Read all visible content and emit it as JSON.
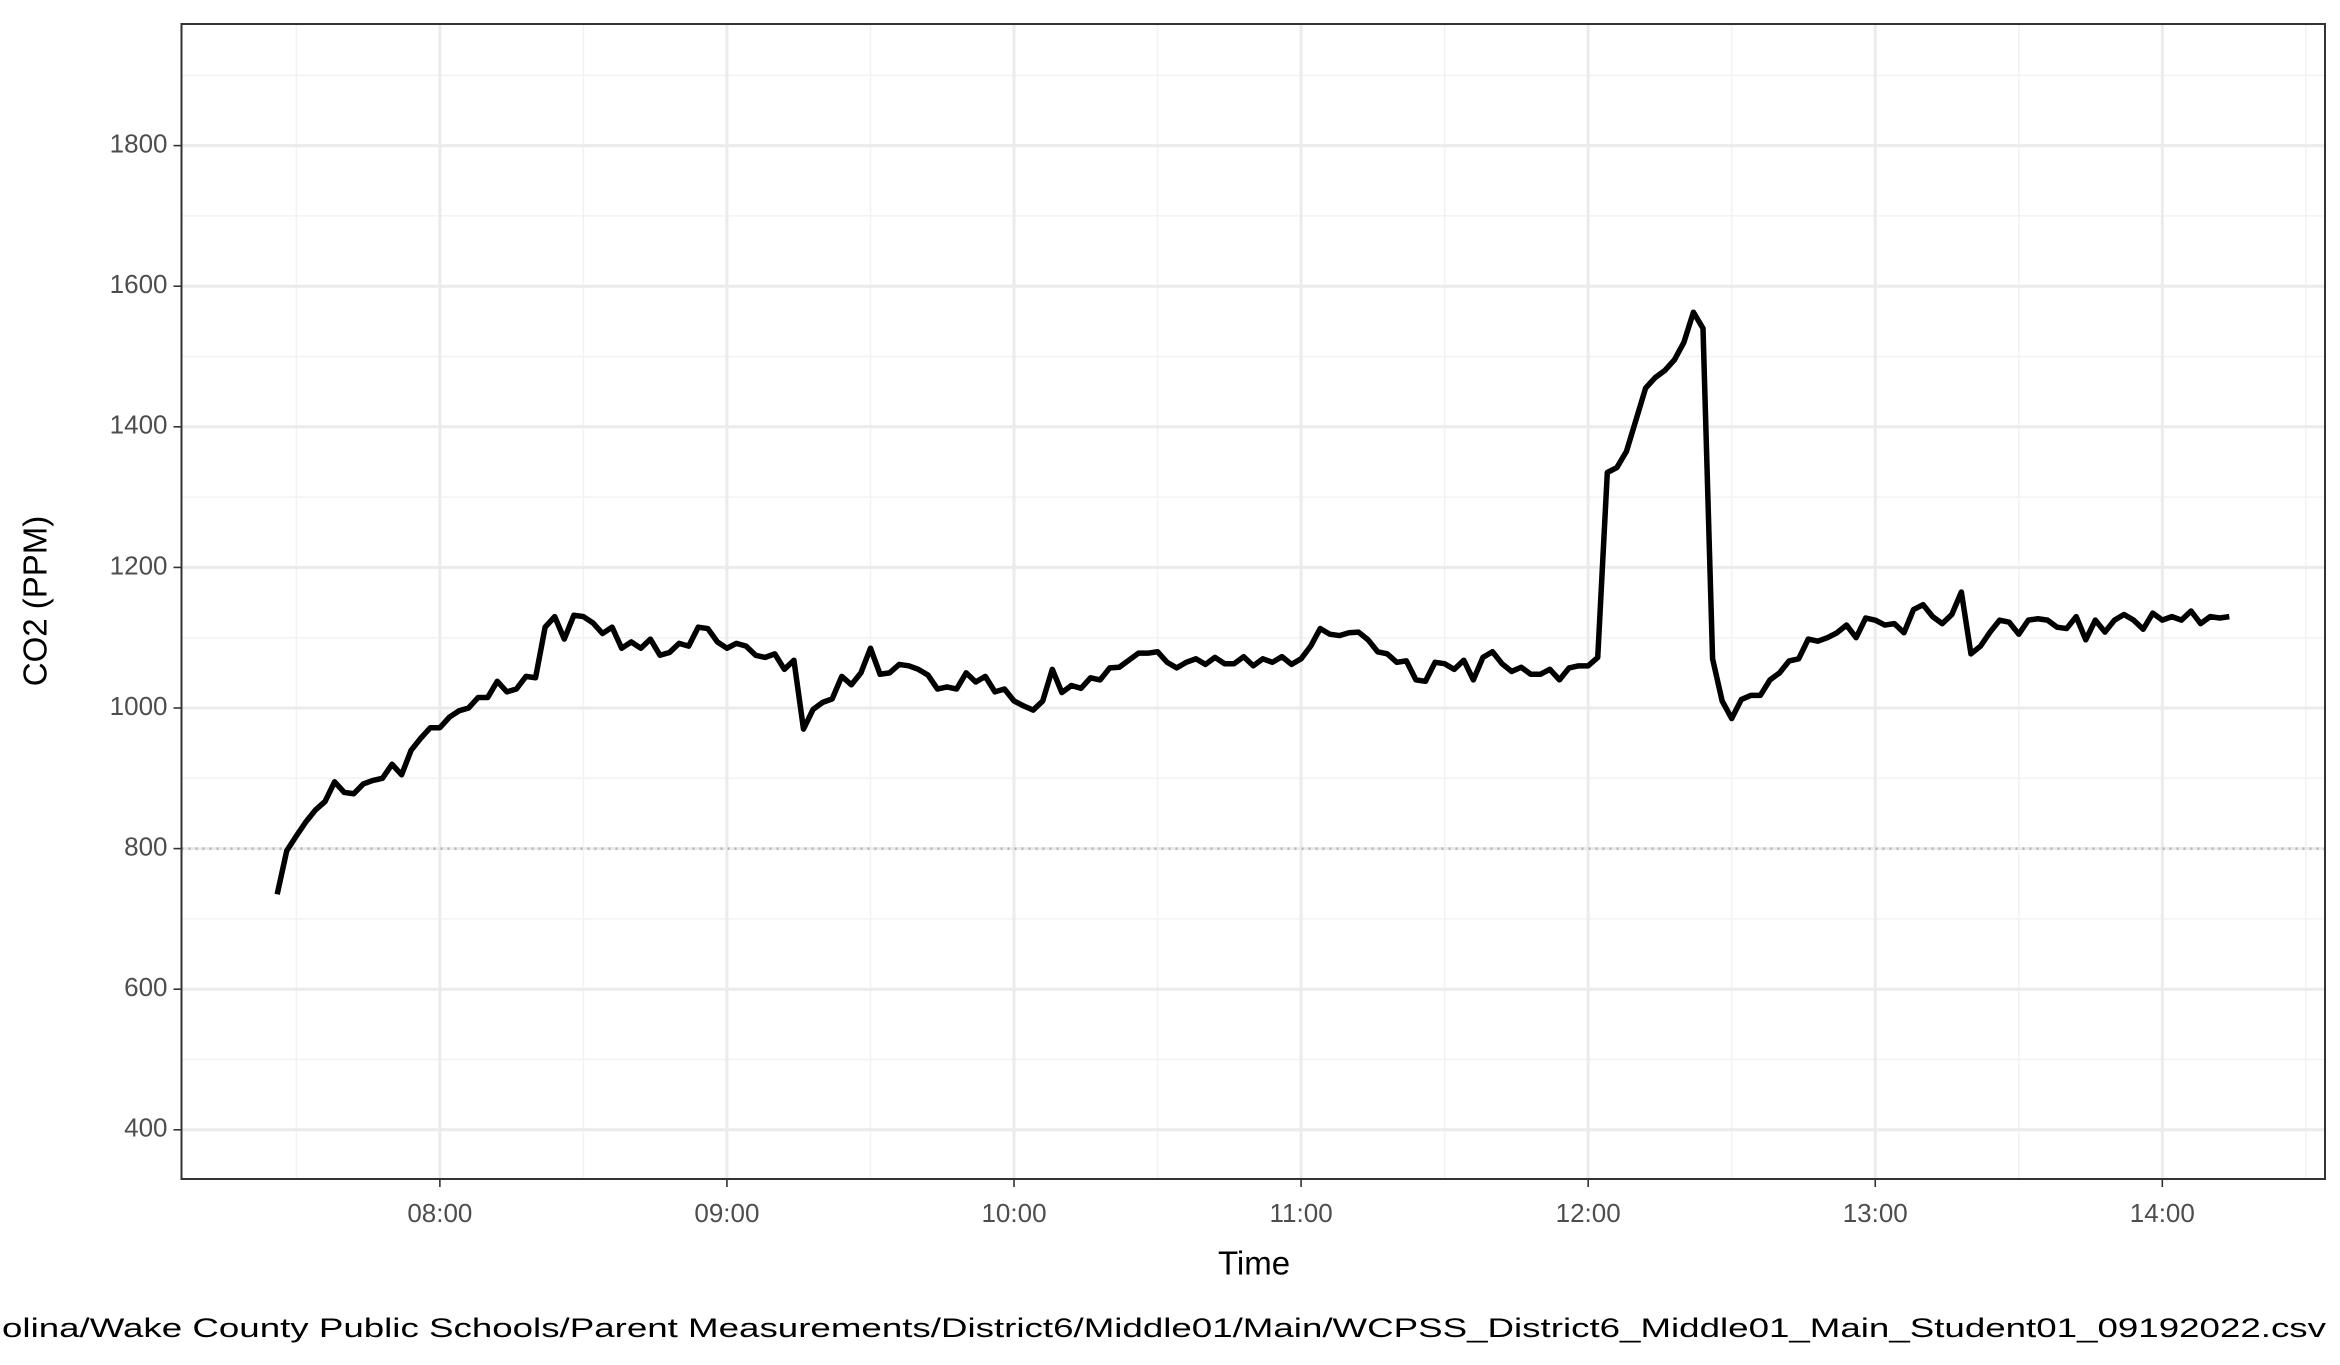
{
  "chart_data": {
    "type": "line",
    "x_label": "Time",
    "y_label": "CO2 (PPM)",
    "caption": "olina/Wake County Public Schools/Parent Measurements/District6/Middle01/Main/WCPSS_District6_Middle01_Main_Student01_09192022.csv",
    "x": [
      "07:26",
      "07:28",
      "07:30",
      "07:32",
      "07:34",
      "07:36",
      "07:38",
      "07:40",
      "07:42",
      "07:44",
      "07:46",
      "07:48",
      "07:50",
      "07:52",
      "07:54",
      "07:56",
      "07:58",
      "08:00",
      "08:02",
      "08:04",
      "08:06",
      "08:08",
      "08:10",
      "08:12",
      "08:14",
      "08:16",
      "08:18",
      "08:20",
      "08:22",
      "08:24",
      "08:26",
      "08:28",
      "08:30",
      "08:32",
      "08:34",
      "08:36",
      "08:38",
      "08:40",
      "08:42",
      "08:44",
      "08:46",
      "08:48",
      "08:50",
      "08:52",
      "08:54",
      "08:56",
      "08:58",
      "09:00",
      "09:02",
      "09:04",
      "09:06",
      "09:08",
      "09:10",
      "09:12",
      "09:14",
      "09:16",
      "09:18",
      "09:20",
      "09:22",
      "09:24",
      "09:26",
      "09:28",
      "09:30",
      "09:32",
      "09:34",
      "09:36",
      "09:38",
      "09:40",
      "09:42",
      "09:44",
      "09:46",
      "09:48",
      "09:50",
      "09:52",
      "09:54",
      "09:56",
      "09:58",
      "10:00",
      "10:02",
      "10:04",
      "10:06",
      "10:08",
      "10:10",
      "10:12",
      "10:14",
      "10:16",
      "10:18",
      "10:20",
      "10:22",
      "10:24",
      "10:26",
      "10:28",
      "10:30",
      "10:32",
      "10:34",
      "10:36",
      "10:38",
      "10:40",
      "10:42",
      "10:44",
      "10:46",
      "10:48",
      "10:50",
      "10:52",
      "10:54",
      "10:56",
      "10:58",
      "11:00",
      "11:02",
      "11:04",
      "11:06",
      "11:08",
      "11:10",
      "11:12",
      "11:14",
      "11:16",
      "11:18",
      "11:20",
      "11:22",
      "11:24",
      "11:26",
      "11:28",
      "11:30",
      "11:32",
      "11:34",
      "11:36",
      "11:38",
      "11:40",
      "11:42",
      "11:44",
      "11:46",
      "11:48",
      "11:50",
      "11:52",
      "11:54",
      "11:56",
      "11:58",
      "12:00",
      "12:02",
      "12:04",
      "12:06",
      "12:08",
      "12:10",
      "12:12",
      "12:14",
      "12:16",
      "12:18",
      "12:20",
      "12:22",
      "12:24",
      "12:26",
      "12:28",
      "12:30",
      "12:32",
      "12:34",
      "12:36",
      "12:38",
      "12:40",
      "12:42",
      "12:44",
      "12:46",
      "12:48",
      "12:50",
      "12:52",
      "12:54",
      "12:56",
      "12:58",
      "13:00",
      "13:02",
      "13:04",
      "13:06",
      "13:08",
      "13:10",
      "13:12",
      "13:14",
      "13:16",
      "13:18",
      "13:20",
      "13:22",
      "13:24",
      "13:26",
      "13:28",
      "13:30",
      "13:32",
      "13:34",
      "13:36",
      "13:38",
      "13:40",
      "13:42",
      "13:44",
      "13:46",
      "13:48",
      "13:50",
      "13:52",
      "13:54",
      "13:56",
      "13:58",
      "14:00",
      "14:02",
      "14:04",
      "14:06",
      "14:08",
      "14:10",
      "14:12",
      "14:14"
    ],
    "series": [
      {
        "name": "CO2",
        "color": "#000000",
        "values": [
          735,
          797,
          818,
          838,
          855,
          867,
          895,
          880,
          878,
          892,
          897,
          900,
          920,
          905,
          940,
          957,
          972,
          972,
          987,
          996,
          1000,
          1015,
          1015,
          1038,
          1023,
          1027,
          1045,
          1043,
          1115,
          1130,
          1098,
          1132,
          1130,
          1121,
          1106,
          1115,
          1085,
          1094,
          1085,
          1098,
          1075,
          1079,
          1092,
          1088,
          1115,
          1113,
          1094,
          1085,
          1092,
          1088,
          1075,
          1072,
          1077,
          1055,
          1068,
          970,
          998,
          1008,
          1013,
          1045,
          1033,
          1050,
          1085,
          1048,
          1050,
          1062,
          1060,
          1055,
          1047,
          1027,
          1030,
          1027,
          1050,
          1037,
          1045,
          1023,
          1027,
          1010,
          1003,
          997,
          1010,
          1055,
          1022,
          1032,
          1028,
          1043,
          1040,
          1057,
          1058,
          1068,
          1078,
          1078,
          1080,
          1065,
          1057,
          1065,
          1070,
          1062,
          1072,
          1063,
          1063,
          1073,
          1060,
          1070,
          1065,
          1073,
          1062,
          1070,
          1088,
          1113,
          1105,
          1103,
          1107,
          1108,
          1097,
          1080,
          1077,
          1065,
          1067,
          1040,
          1038,
          1065,
          1063,
          1055,
          1068,
          1040,
          1072,
          1080,
          1063,
          1052,
          1058,
          1048,
          1048,
          1055,
          1040,
          1057,
          1060,
          1060,
          1072,
          1335,
          1342,
          1365,
          1410,
          1455,
          1470,
          1480,
          1495,
          1520,
          1563,
          1540,
          1070,
          1010,
          985,
          1012,
          1018,
          1018,
          1040,
          1050,
          1067,
          1070,
          1098,
          1095,
          1100,
          1107,
          1118,
          1100,
          1128,
          1125,
          1118,
          1120,
          1107,
          1140,
          1147,
          1130,
          1120,
          1133,
          1165,
          1077,
          1088,
          1108,
          1125,
          1122,
          1105,
          1125,
          1127,
          1125,
          1115,
          1113,
          1130,
          1097,
          1125,
          1108,
          1125,
          1133,
          1125,
          1112,
          1135,
          1125,
          1130,
          1125,
          1138,
          1120,
          1130,
          1128,
          1130
        ]
      }
    ],
    "xlim": [
      "07:06",
      "14:34"
    ],
    "xticks": [
      "08:00",
      "09:00",
      "10:00",
      "11:00",
      "12:00",
      "13:00",
      "14:00"
    ],
    "ylim": [
      330,
      1973
    ],
    "yticks": [
      400,
      600,
      800,
      1000,
      1200,
      1400,
      1600,
      1800
    ],
    "hline": 800,
    "hline_color": "#b3b3b3",
    "grid": true
  }
}
